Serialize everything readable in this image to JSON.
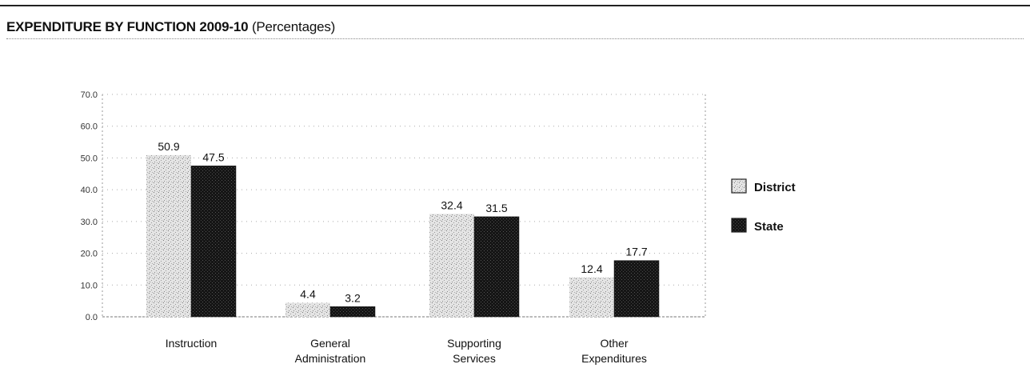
{
  "header": {
    "title_bold": "EXPENDITURE BY FUNCTION 2009-10",
    "title_paren": "(Percentages)"
  },
  "chart_data": {
    "type": "bar",
    "title": "EXPENDITURE BY FUNCTION 2009-10 (Percentages)",
    "categories": [
      [
        "Instruction"
      ],
      [
        "General",
        "Administration"
      ],
      [
        "Supporting",
        "Services"
      ],
      [
        "Other",
        "Expenditures"
      ]
    ],
    "series": [
      {
        "name": "District",
        "values": [
          50.9,
          4.4,
          32.4,
          12.4
        ],
        "color": "#c8c8c8"
      },
      {
        "name": "State",
        "values": [
          47.5,
          3.2,
          31.5,
          17.7
        ],
        "color": "#1a1a1a"
      }
    ],
    "ylim": [
      0,
      70
    ],
    "yticks": [
      "0.0",
      "10.0",
      "20.0",
      "30.0",
      "40.0",
      "50.0",
      "60.0",
      "70.0"
    ],
    "grid": true,
    "legend_position": "right"
  }
}
